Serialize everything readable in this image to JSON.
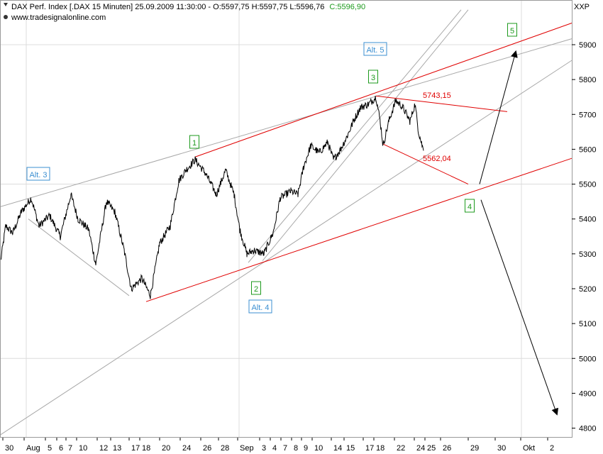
{
  "header": {
    "instrument": "DAX Perf. Index [.DAX  15 Minuten] 25.09.2009 11:30:00 - O:5597,75 H:5597,75 L:5596,76",
    "close_label": "C:5596,90",
    "website": "www.tradesignalonline.com",
    "axis_unit": "XXP"
  },
  "colors": {
    "price": "#000000",
    "channel": "#e00000",
    "trendline": "#a8a8a8",
    "grid": "#dcdcdc",
    "wave_green": "#1d9a1d",
    "wave_blue": "#3b8fd1"
  },
  "chart_data": {
    "type": "line",
    "title": "DAX Perf. Index [.DAX  15 Minuten]",
    "y_axis": {
      "min": 4750,
      "max": 6000,
      "position": "right",
      "ticks": [
        "5900",
        "5800",
        "5700",
        "5600",
        "5500",
        "5400",
        "5300",
        "5200",
        "5100",
        "5000",
        "4900",
        "4800"
      ]
    },
    "x_axis": {
      "ticks": [
        "30",
        "Aug",
        "5",
        "6",
        "7",
        "10",
        "12",
        "13",
        "17",
        "18",
        "20",
        "24",
        "26",
        "28",
        "Sep",
        "3",
        "4",
        "7",
        "8",
        "9",
        "10",
        "14",
        "15",
        "17",
        "18",
        "22",
        "24",
        "25",
        "26",
        "29",
        "30",
        "Okt",
        "2"
      ]
    },
    "price_anchors": [
      [
        1,
        5280
      ],
      [
        8,
        5380
      ],
      [
        18,
        5360
      ],
      [
        30,
        5420
      ],
      [
        44,
        5460
      ],
      [
        55,
        5380
      ],
      [
        70,
        5410
      ],
      [
        85,
        5350
      ],
      [
        100,
        5470
      ],
      [
        110,
        5400
      ],
      [
        125,
        5370
      ],
      [
        135,
        5270
      ],
      [
        150,
        5450
      ],
      [
        162,
        5420
      ],
      [
        175,
        5310
      ],
      [
        185,
        5200
      ],
      [
        200,
        5230
      ],
      [
        212,
        5180
      ],
      [
        225,
        5330
      ],
      [
        240,
        5380
      ],
      [
        252,
        5510
      ],
      [
        262,
        5540
      ],
      [
        275,
        5570
      ],
      [
        290,
        5530
      ],
      [
        305,
        5470
      ],
      [
        318,
        5540
      ],
      [
        330,
        5470
      ],
      [
        338,
        5370
      ],
      [
        348,
        5300
      ],
      [
        358,
        5310
      ],
      [
        372,
        5300
      ],
      [
        385,
        5360
      ],
      [
        395,
        5460
      ],
      [
        410,
        5480
      ],
      [
        420,
        5470
      ],
      [
        428,
        5550
      ],
      [
        438,
        5610
      ],
      [
        450,
        5590
      ],
      [
        462,
        5620
      ],
      [
        470,
        5570
      ],
      [
        480,
        5600
      ],
      [
        490,
        5640
      ],
      [
        498,
        5680
      ],
      [
        508,
        5720
      ],
      [
        520,
        5730
      ],
      [
        530,
        5750
      ],
      [
        536,
        5680
      ],
      [
        540,
        5610
      ],
      [
        548,
        5680
      ],
      [
        558,
        5740
      ],
      [
        568,
        5720
      ],
      [
        578,
        5680
      ],
      [
        585,
        5730
      ],
      [
        590,
        5650
      ],
      [
        597,
        5596
      ]
    ],
    "price_labels": [
      "5743,15",
      "5562,04"
    ],
    "waves": [
      {
        "label": "1",
        "color": "green",
        "price": 5612
      },
      {
        "label": "2",
        "color": "green",
        "price": 5198
      },
      {
        "label": "3",
        "color": "green",
        "price": 5808
      },
      {
        "label": "4",
        "color": "green",
        "price": 5440
      },
      {
        "label": "5",
        "color": "green",
        "price": 5938
      },
      {
        "label": "Alt. 3",
        "color": "blue",
        "price": 5530
      },
      {
        "label": "Alt. 4",
        "color": "blue",
        "price": 5150
      },
      {
        "label": "Alt. 5",
        "color": "blue",
        "price": 5850
      }
    ]
  }
}
